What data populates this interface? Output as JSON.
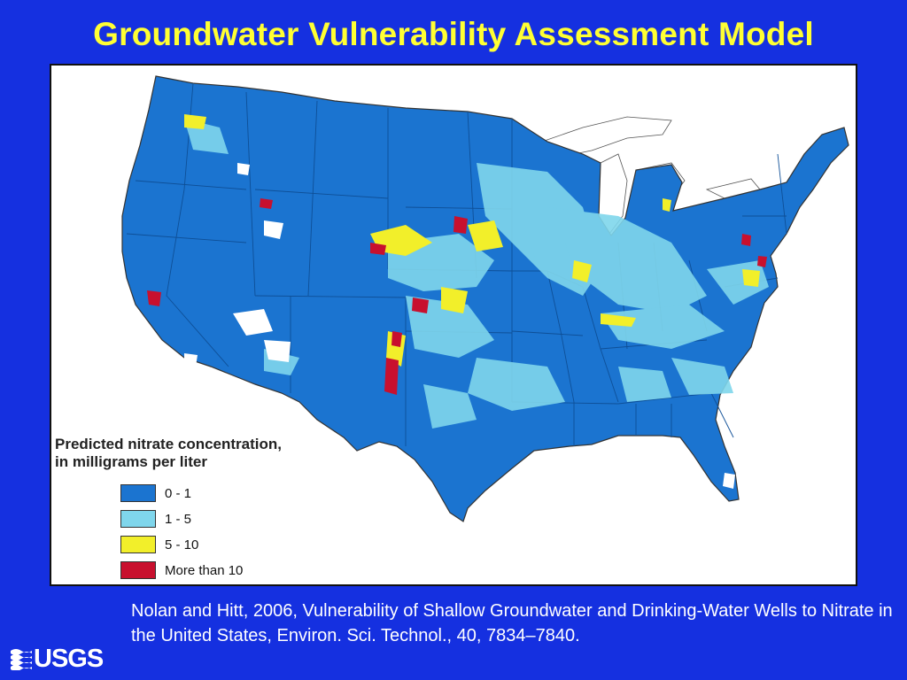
{
  "slide": {
    "title": "Groundwater Vulnerability Assessment Model",
    "citation": "Nolan and Hitt, 2006, Vulnerability of Shallow Groundwater and Drinking-Water Wells to Nitrate in the United States, Environ. Sci. Technol., 40, 7834–7840.",
    "logo_text": "USGS"
  },
  "map": {
    "background_color": "#ffffff",
    "land_base_color": "#1b74d0",
    "legend": {
      "title_line1": "Predicted nitrate concentration,",
      "title_line2": "in milligrams per liter",
      "items": [
        {
          "label": "0 - 1",
          "color": "#1b74d0"
        },
        {
          "label": "1 - 5",
          "color": "#7fd6ec"
        },
        {
          "label": "5 - 10",
          "color": "#f2ef2a"
        },
        {
          "label": "More than 10",
          "color": "#c8102e"
        }
      ]
    }
  },
  "colors": {
    "slide_background": "#1530e0",
    "title": "#ffff33",
    "citation": "#ffffff"
  }
}
